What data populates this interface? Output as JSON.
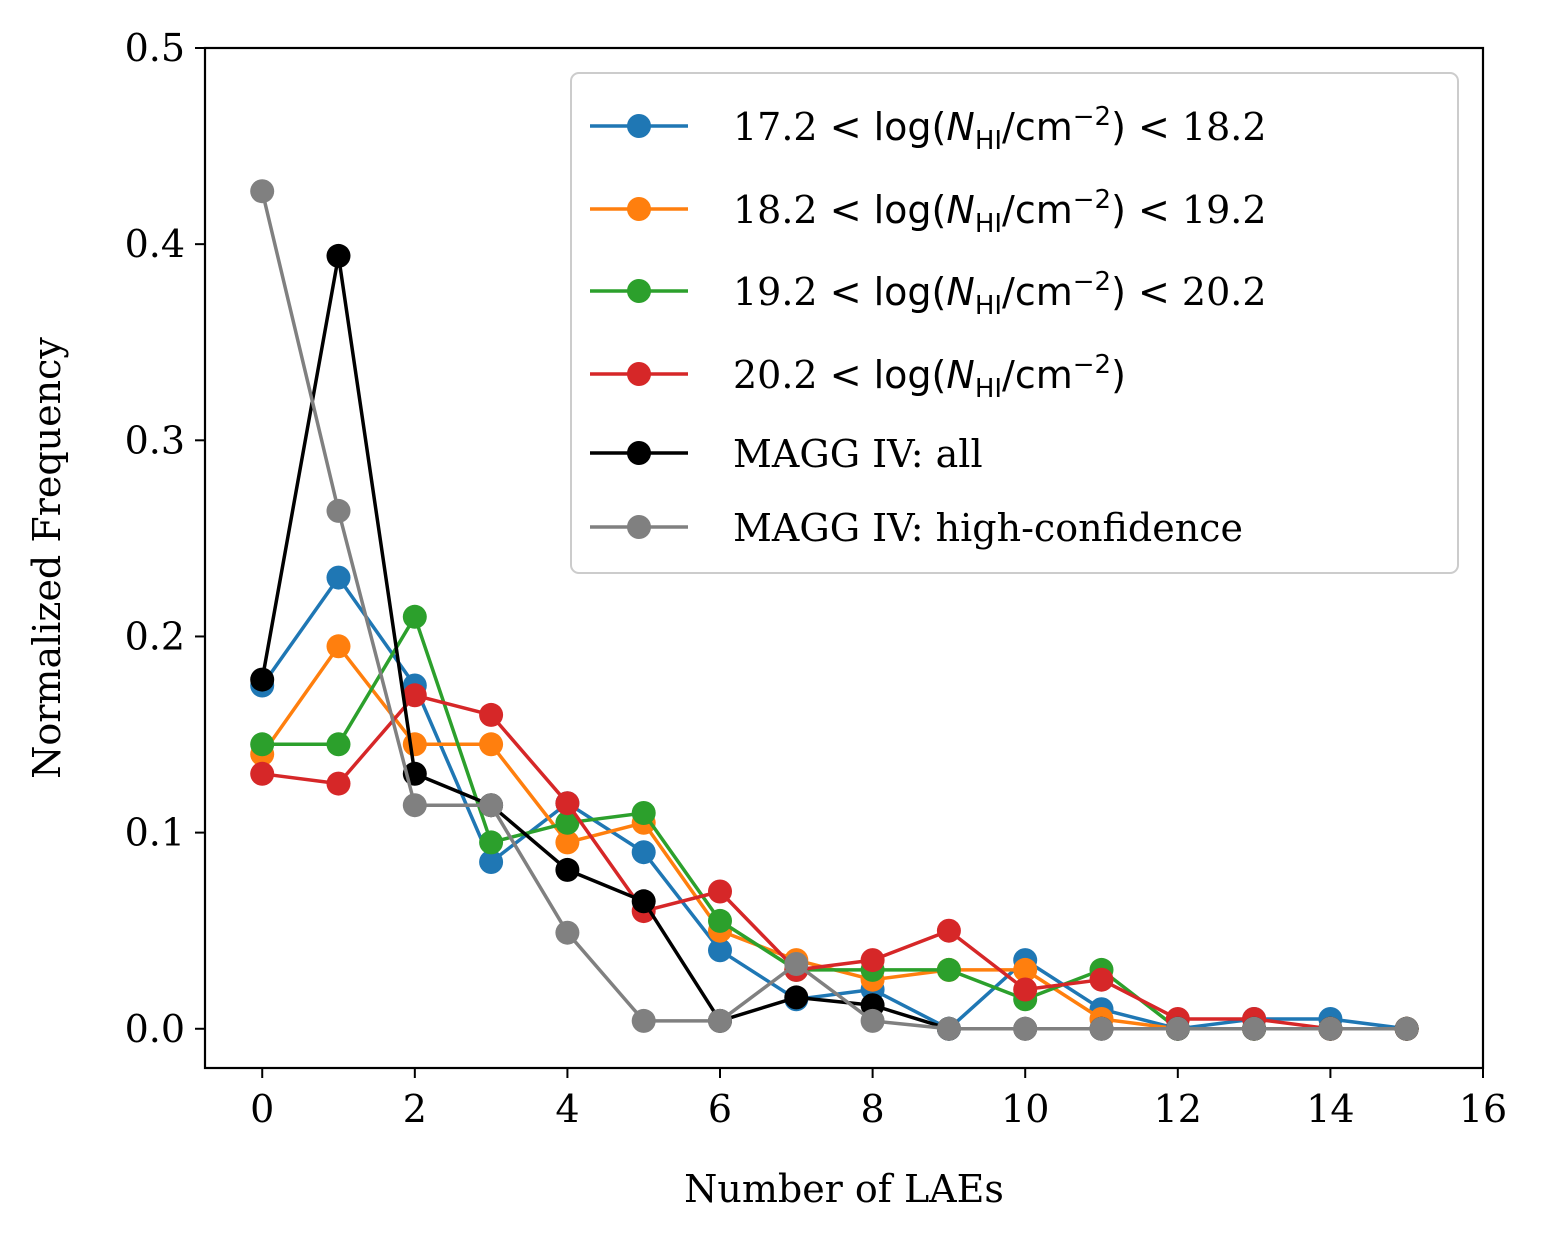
{
  "chart_data": {
    "type": "line",
    "xlabel": "Number of LAEs",
    "ylabel": "Normalized Frequency",
    "xlim": [
      -0.75,
      16
    ],
    "ylim": [
      -0.02,
      0.5
    ],
    "xticks": [
      0,
      2,
      4,
      6,
      8,
      10,
      12,
      14,
      16
    ],
    "yticks": [
      0.0,
      0.1,
      0.2,
      0.3,
      0.4,
      0.5
    ],
    "xtick_labels": [
      "0",
      "2",
      "4",
      "6",
      "8",
      "10",
      "12",
      "14",
      "16"
    ],
    "ytick_labels": [
      "0.0",
      "0.1",
      "0.2",
      "0.3",
      "0.4",
      "0.5"
    ],
    "grid": false,
    "legend_position": "top-right",
    "series": [
      {
        "name_lo": "17.2",
        "name_hi": "18.2",
        "color": "#1f77b4",
        "x": [
          0,
          1,
          2,
          3,
          4,
          5,
          6,
          7,
          8,
          9,
          10,
          11,
          12,
          13,
          14,
          15
        ],
        "y": [
          0.175,
          0.23,
          0.175,
          0.085,
          0.115,
          0.09,
          0.04,
          0.015,
          0.02,
          0.0,
          0.035,
          0.01,
          0.0,
          0.005,
          0.005,
          0.0
        ]
      },
      {
        "name_lo": "18.2",
        "name_hi": "19.2",
        "color": "#ff7f0e",
        "x": [
          0,
          1,
          2,
          3,
          4,
          5,
          6,
          7,
          8,
          9,
          10,
          11,
          12,
          13,
          14,
          15
        ],
        "y": [
          0.14,
          0.195,
          0.145,
          0.145,
          0.095,
          0.105,
          0.05,
          0.035,
          0.025,
          0.03,
          0.03,
          0.005,
          0.0,
          0.0,
          0.0,
          0.0
        ]
      },
      {
        "name_lo": "19.2",
        "name_hi": "20.2",
        "color": "#2ca02c",
        "x": [
          0,
          1,
          2,
          3,
          4,
          5,
          6,
          7,
          8,
          9,
          10,
          11,
          12,
          13,
          14,
          15
        ],
        "y": [
          0.145,
          0.145,
          0.21,
          0.095,
          0.105,
          0.11,
          0.055,
          0.03,
          0.03,
          0.03,
          0.015,
          0.03,
          0.0,
          0.0,
          0.0,
          0.0
        ]
      },
      {
        "name_lo": "20.2",
        "name_hi": "",
        "color": "#d62728",
        "x": [
          0,
          1,
          2,
          3,
          4,
          5,
          6,
          7,
          8,
          9,
          10,
          11,
          12,
          13,
          14,
          15
        ],
        "y": [
          0.13,
          0.125,
          0.17,
          0.16,
          0.115,
          0.06,
          0.07,
          0.03,
          0.035,
          0.05,
          0.02,
          0.025,
          0.005,
          0.005,
          0.0,
          0.0
        ]
      },
      {
        "name": "MAGG IV: all",
        "color": "#000000",
        "x": [
          0,
          1,
          2,
          3,
          4,
          5,
          6,
          7,
          8,
          9,
          10,
          11,
          12,
          13,
          14,
          15
        ],
        "y": [
          0.178,
          0.394,
          0.13,
          0.114,
          0.081,
          0.065,
          0.004,
          0.016,
          0.012,
          0.0,
          0.0,
          0.0,
          0.0,
          0.0,
          0.0,
          0.0
        ]
      },
      {
        "name": "MAGG IV: high-confidence",
        "color": "#808080",
        "x": [
          0,
          1,
          2,
          3,
          4,
          5,
          6,
          7,
          8,
          9,
          10,
          11,
          12,
          13,
          14,
          15
        ],
        "y": [
          0.427,
          0.264,
          0.114,
          0.114,
          0.049,
          0.004,
          0.004,
          0.033,
          0.004,
          0.0,
          0.0,
          0.0,
          0.0,
          0.0,
          0.0,
          0.0
        ]
      }
    ],
    "legend_label_core": "log(N",
    "legend_label_sub": "HI",
    "legend_label_unit": "/cm",
    "legend_label_exp": "−2",
    "legend_lt": "<"
  }
}
